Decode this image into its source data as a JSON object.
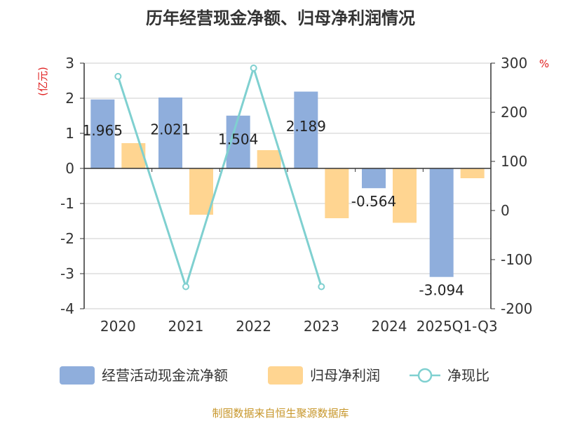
{
  "title": "历年经营现金净额、归母净利润情况",
  "left_unit": "(亿元)",
  "right_unit": "%",
  "source": "制图数据来自恒生聚源数据库",
  "colors": {
    "cash": "#8faedc",
    "profit": "#ffd591",
    "ratio": "#7fd0d0",
    "axis": "#333333",
    "grid": "#cccccc",
    "zero": "#333333"
  },
  "chart_data": {
    "type": "bar",
    "categories": [
      "2020",
      "2021",
      "2022",
      "2023",
      "2024",
      "2025Q1-Q3"
    ],
    "series": [
      {
        "name": "经营活动现金流净额",
        "type": "bar",
        "axis": "left",
        "values": [
          1.965,
          2.021,
          1.504,
          2.189,
          -0.564,
          -3.094
        ],
        "labels": [
          "1.965",
          "2.021",
          "1.504",
          "2.189",
          "-0.564",
          "-3.094"
        ]
      },
      {
        "name": "归母净利润",
        "type": "bar",
        "axis": "left",
        "values": [
          0.72,
          -1.32,
          0.52,
          -1.42,
          -1.55,
          -0.28
        ]
      },
      {
        "name": "净现比",
        "type": "line",
        "axis": "right",
        "values": [
          273,
          -155,
          290,
          -155,
          null,
          null
        ]
      }
    ],
    "ylim_left": [
      -4,
      3
    ],
    "yticks_left": [
      "3",
      "2",
      "1",
      "0",
      "-1",
      "-2",
      "-3",
      "-4"
    ],
    "ylim_right": [
      -200,
      300
    ],
    "yticks_right": [
      "300",
      "200",
      "100",
      "0",
      "-100",
      "-200"
    ],
    "grid": true,
    "legend": "bottom"
  }
}
